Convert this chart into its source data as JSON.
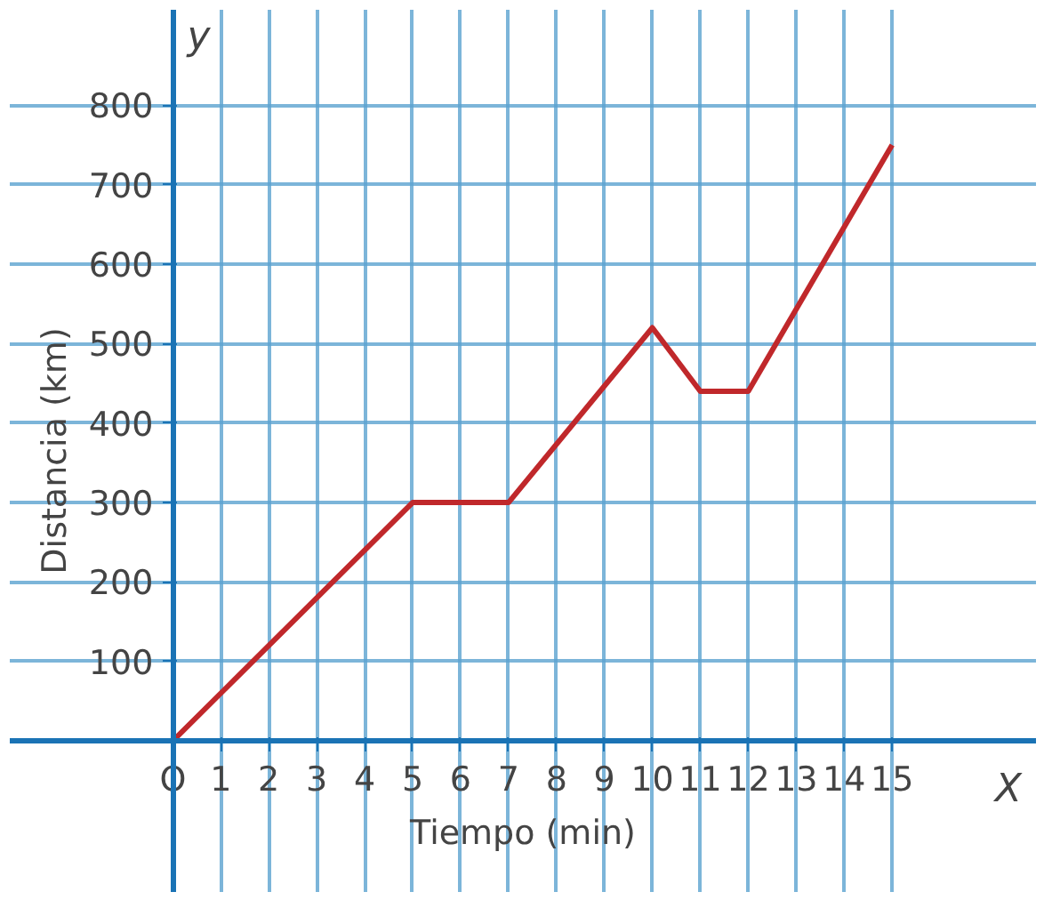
{
  "chart_data": {
    "type": "line",
    "xlabel": "Tiempo (min)",
    "ylabel": "Distancia (km)",
    "x": [
      0,
      5,
      7,
      10,
      11,
      12,
      15
    ],
    "series": [
      {
        "color": "#c0282b",
        "values": [
          0,
          300,
          300,
          520,
          440,
          440,
          750
        ]
      }
    ],
    "xlim": [
      -3.4,
      18
    ],
    "ylim": [
      -190,
      920
    ],
    "xticks": [
      {
        "value": 0,
        "label": "O"
      },
      1,
      2,
      3,
      4,
      5,
      6,
      7,
      8,
      9,
      10,
      11,
      12,
      13,
      14,
      15
    ],
    "yticks": [
      100,
      200,
      300,
      400,
      500,
      600,
      700,
      800
    ],
    "grid": true,
    "marker": "none",
    "line_style": "solid",
    "annotations": [
      "y",
      "X"
    ]
  }
}
